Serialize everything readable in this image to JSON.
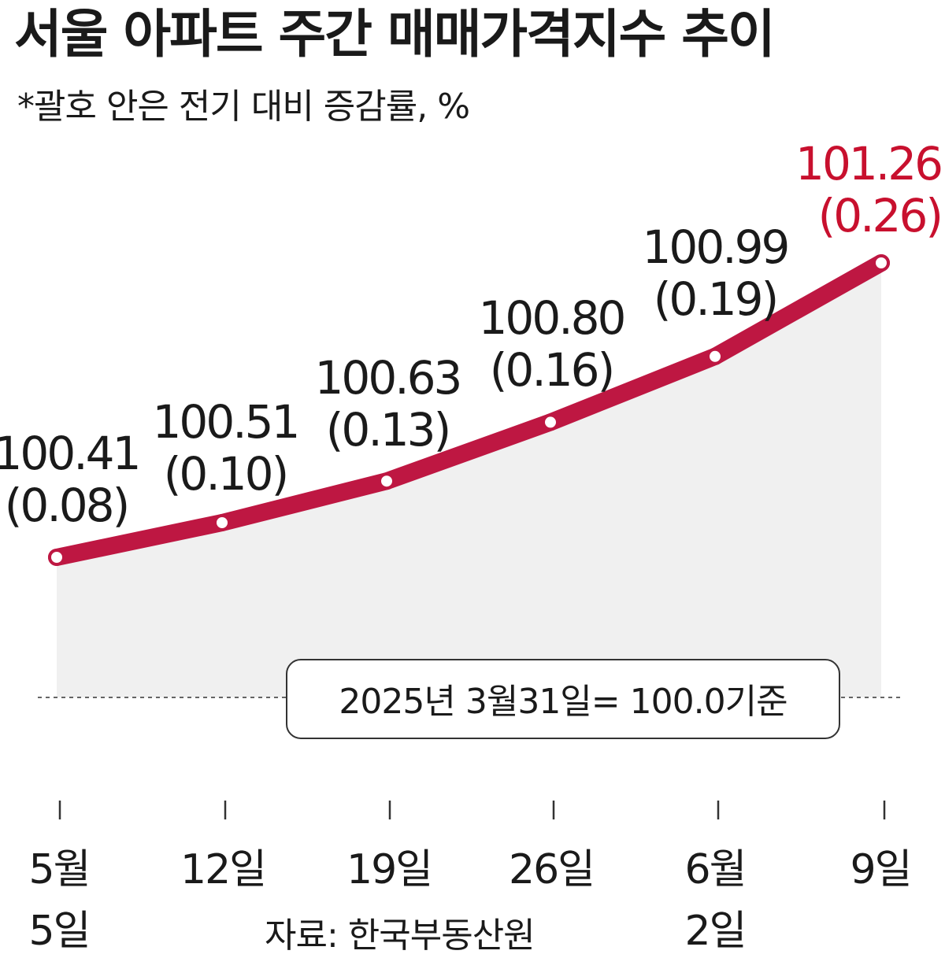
{
  "title": "서울 아파트 주간 매매가격지수 추이",
  "subtitle": "*괄호 안은 전기 대비 증감률, %",
  "source": "자료: 한국부동산원",
  "colors": {
    "line": "#be1742",
    "highlight": "#c8102e",
    "area": "#f0f0f0",
    "text": "#1a1a1a"
  },
  "chart_data": {
    "type": "line",
    "title": "서울 아파트 주간 매매가격지수 추이",
    "categories": [
      [
        "5월",
        "5일"
      ],
      [
        "12일"
      ],
      [
        "19일"
      ],
      [
        "26일"
      ],
      [
        "6월",
        "2일"
      ],
      [
        "9일"
      ]
    ],
    "values": [
      100.41,
      100.51,
      100.63,
      100.8,
      100.99,
      101.26
    ],
    "value_labels": [
      "100.41",
      "100.51",
      "100.63",
      "100.80",
      "100.99",
      "101.26"
    ],
    "change_labels": [
      "(0.08)",
      "(0.10)",
      "(0.13)",
      "(0.16)",
      "(0.19)",
      "(0.26)"
    ],
    "baseline_value": 100.0,
    "baseline_label": "2025년 3월31일= 100.0기준",
    "highlight_index": 5
  }
}
